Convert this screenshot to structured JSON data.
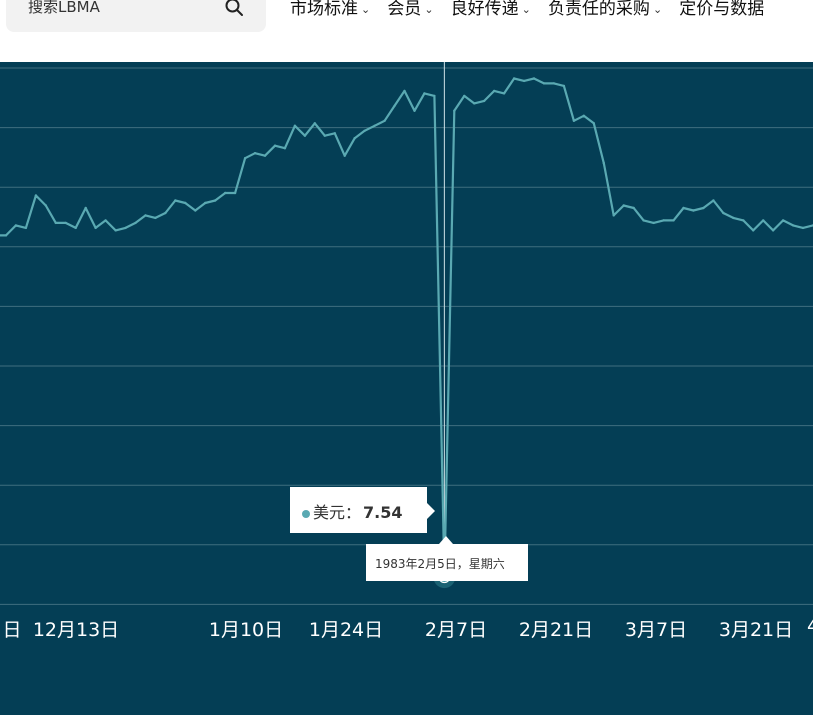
{
  "search": {
    "placeholder": "搜索LBMA"
  },
  "nav": {
    "items": [
      {
        "label": "市场标准"
      },
      {
        "label": "会员"
      },
      {
        "label": "良好传递"
      },
      {
        "label": "负责任的采购"
      },
      {
        "label": "定价与数据"
      }
    ]
  },
  "chart_data": {
    "type": "line",
    "title": "",
    "xlabel": "",
    "ylabel": "",
    "x_tick_labels": [
      "日",
      "12月13日",
      "1月10日",
      "1月24日",
      "2月7日",
      "2月21日",
      "3月7日",
      "3月21日",
      "4"
    ],
    "series": [
      {
        "name": "美元",
        "color": "#5aa9b2",
        "values": [
          14.4,
          14.4,
          14.6,
          14.55,
          15.2,
          15,
          14.65,
          14.65,
          14.55,
          14.95,
          14.55,
          14.7,
          14.5,
          14.55,
          14.65,
          14.8,
          14.75,
          14.85,
          15.1,
          15.05,
          14.9,
          15.05,
          15.1,
          15.25,
          15.25,
          15.95,
          16.05,
          16,
          16.2,
          16.15,
          16.6,
          16.4,
          16.65,
          16.4,
          16.45,
          16,
          16.35,
          16.5,
          16.6,
          16.7,
          17,
          17.3,
          16.9,
          17.25,
          17.2,
          7.54,
          16.9,
          17.2,
          17.05,
          17.1,
          17.3,
          17.25,
          17.55,
          17.5,
          17.55,
          17.45,
          17.45,
          17.4,
          16.7,
          16.8,
          16.65,
          15.85,
          14.8,
          15.0,
          14.95,
          14.7,
          14.65,
          14.7,
          14.7,
          14.95,
          14.9,
          14.95,
          15.1,
          14.85,
          14.75,
          14.7,
          14.5,
          14.7,
          14.5,
          14.7,
          14.6,
          14.55,
          14.6
        ]
      }
    ],
    "grid": true,
    "tooltip": {
      "series": "美元",
      "value": "7.54",
      "date": "1983年2月5日，星期六"
    }
  }
}
